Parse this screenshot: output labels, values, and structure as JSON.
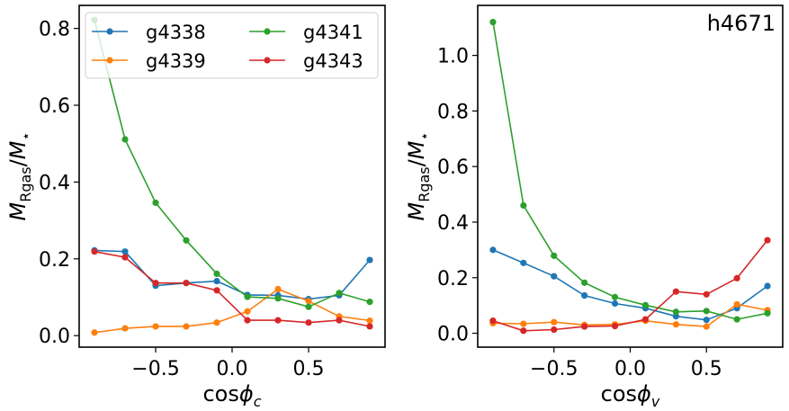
{
  "colors": {
    "g4338": "#1f77b4",
    "g4339": "#ff7f0e",
    "g4341": "#2ca02c",
    "g4343": "#d62728"
  },
  "chart_data": [
    {
      "type": "line",
      "xlabel": "cosϕ_c",
      "ylabel": "M_Rgas/M_⋆",
      "xlim": [
        -1.0,
        1.0
      ],
      "ylim": [
        -0.03,
        0.86
      ],
      "xticks": [
        -0.5,
        0.0,
        0.5
      ],
      "xtick_labels": [
        "−0.5",
        "0.0",
        "0.5"
      ],
      "yticks": [
        0.0,
        0.2,
        0.4,
        0.6,
        0.8
      ],
      "ytick_labels": [
        "0.0",
        "0.2",
        "0.4",
        "0.6",
        "0.8"
      ],
      "grid": false,
      "legend": {
        "placement": "top-left",
        "columns": 2,
        "entries": [
          "g4338",
          "g4339",
          "g4341",
          "g4343"
        ]
      },
      "x": [
        -0.9,
        -0.7,
        -0.5,
        -0.3,
        -0.1,
        0.1,
        0.3,
        0.5,
        0.7,
        0.9
      ],
      "series": [
        {
          "name": "g4338",
          "values": [
            0.222,
            0.219,
            0.13,
            0.137,
            0.142,
            0.106,
            0.105,
            0.095,
            0.105,
            0.197
          ]
        },
        {
          "name": "g4339",
          "values": [
            0.008,
            0.019,
            0.024,
            0.024,
            0.034,
            0.063,
            0.121,
            0.09,
            0.05,
            0.039
          ]
        },
        {
          "name": "g4341",
          "values": [
            0.822,
            0.511,
            0.346,
            0.248,
            0.161,
            0.101,
            0.097,
            0.075,
            0.111,
            0.088
          ]
        },
        {
          "name": "g4343",
          "values": [
            0.219,
            0.204,
            0.137,
            0.137,
            0.118,
            0.04,
            0.04,
            0.034,
            0.04,
            0.024
          ]
        }
      ]
    },
    {
      "type": "line",
      "xlabel": "cosϕ_v",
      "ylabel": "M_Rgas/M_⋆",
      "annotation": "h4671",
      "xlim": [
        -1.0,
        1.0
      ],
      "ylim": [
        -0.05,
        1.18
      ],
      "xticks": [
        -0.5,
        0.0,
        0.5
      ],
      "xtick_labels": [
        "−0.5",
        "0.0",
        "0.5"
      ],
      "yticks": [
        0.0,
        0.2,
        0.4,
        0.6,
        0.8,
        1.0
      ],
      "ytick_labels": [
        "0.0",
        "0.2",
        "0.4",
        "0.6",
        "0.8",
        "1.0"
      ],
      "grid": false,
      "x": [
        -0.9,
        -0.7,
        -0.5,
        -0.3,
        -0.1,
        0.1,
        0.3,
        0.5,
        0.7,
        0.9
      ],
      "series": [
        {
          "name": "g4338",
          "values": [
            0.3,
            0.253,
            0.205,
            0.136,
            0.107,
            0.09,
            0.061,
            0.048,
            0.09,
            0.17
          ]
        },
        {
          "name": "g4339",
          "values": [
            0.036,
            0.034,
            0.04,
            0.03,
            0.032,
            0.045,
            0.032,
            0.024,
            0.104,
            0.083
          ]
        },
        {
          "name": "g4341",
          "values": [
            1.12,
            0.46,
            0.279,
            0.182,
            0.13,
            0.101,
            0.077,
            0.08,
            0.05,
            0.072
          ]
        },
        {
          "name": "g4343",
          "values": [
            0.045,
            0.009,
            0.013,
            0.024,
            0.026,
            0.05,
            0.15,
            0.14,
            0.198,
            0.335
          ]
        }
      ]
    }
  ]
}
